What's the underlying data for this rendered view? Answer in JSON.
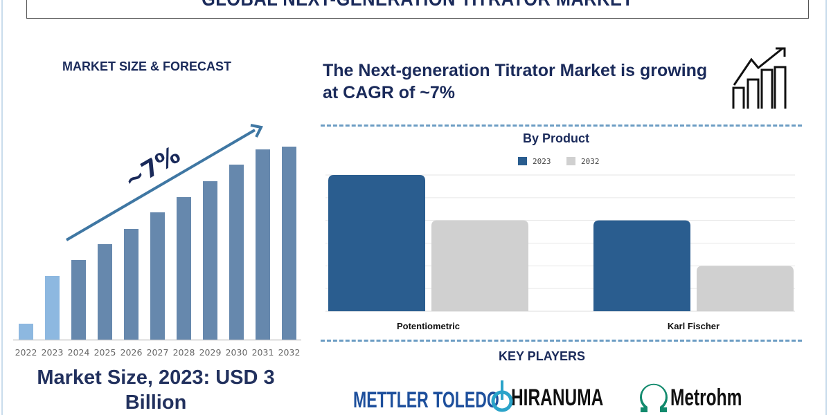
{
  "title": "GLOBAL NEXT-GENERATION TITRATOR MARKET",
  "left_panel": {
    "heading": "MARKET SIZE & FORECAST",
    "cagr_label": "~7%",
    "market_size_text": "Market Size, 2023: USD 3 Billion"
  },
  "right_panel": {
    "heading": "The Next-generation Titrator Market is growing at CAGR of ~7%",
    "icon": "growth-chart-icon",
    "key_players_heading": "KEY PLAYERS",
    "key_players": [
      "METTLER TOLEDO",
      "HIRANUMA",
      "Metrohm"
    ]
  },
  "colors": {
    "navy": "#1a2a5a",
    "bar_light": "#8db8e0",
    "bar_dark": "#6688ad",
    "series_2023": "#2a5d8f",
    "series_2032": "#d0d0d0",
    "arrow": "#3f77a3"
  },
  "chart_data": [
    {
      "type": "bar",
      "title": "",
      "categories": [
        "2022",
        "2023",
        "2024",
        "2025",
        "2026",
        "2027",
        "2028",
        "2029",
        "2030",
        "2031",
        "2032"
      ],
      "values": [
        23,
        92,
        115,
        138,
        160,
        184,
        206,
        229,
        253,
        275,
        279
      ],
      "annotation": "~7%",
      "grid": false,
      "yaxis_visible": false
    },
    {
      "type": "bar",
      "title": "By Product",
      "categories": [
        "Potentiometric",
        "Karl Fischer"
      ],
      "series": [
        {
          "name": "2023",
          "values": [
            6,
            4
          ]
        },
        {
          "name": "2032",
          "values": [
            4,
            2
          ]
        }
      ],
      "ylim": [
        0,
        6
      ],
      "grid": true,
      "legend": "top"
    }
  ]
}
